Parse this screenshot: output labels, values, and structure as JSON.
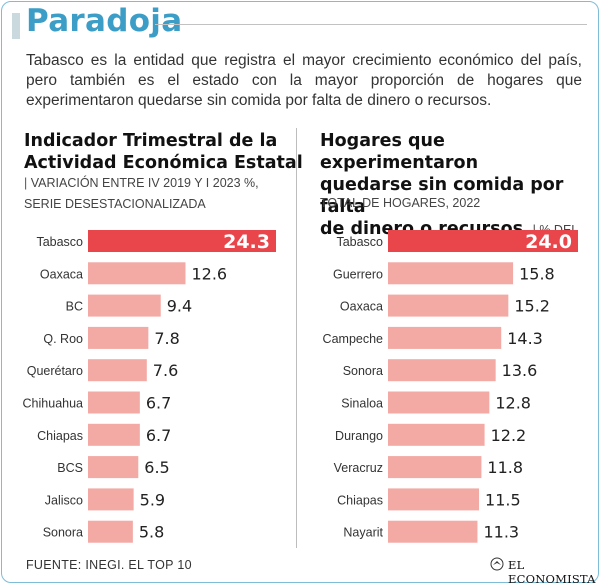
{
  "header": {
    "title": "Paradoja",
    "intro": "Tabasco es la entidad que registra el mayor crecimiento económico del país, pero también es el estado con la mayor proporción de hogares que experimentaron quedarse sin comida por falta de dinero o recursos."
  },
  "left_panel": {
    "heading_line1": "Indicador Trimestral de la",
    "heading_line2": "Actividad Económica Estatal",
    "subtitle_line1": "Variación entre IV 2019 y I 2023 %,",
    "subtitle_line2": "serie desestacionalizada"
  },
  "right_panel": {
    "heading_line1": "Hogares que experimentaron",
    "heading_line2": "quedarse sin comida por falta",
    "heading_line3": "de dinero o recursos",
    "subtitle_inline": "% del",
    "subtitle_line2": "total de hogares, 2022"
  },
  "colors": {
    "highlight_bar": "#e8464b",
    "bar": "#f3a9a4",
    "title": "#3c9dc6"
  },
  "chart_data": [
    {
      "type": "bar",
      "orientation": "horizontal",
      "title": "Indicador Trimestral de la Actividad Económica Estatal",
      "subtitle": "Variación entre IV 2019 y I 2023 %, serie desestacionalizada",
      "categories": [
        "Tabasco",
        "Oaxaca",
        "BC",
        "Q. Roo",
        "Querétaro",
        "Chihuahua",
        "Chiapas",
        "BCS",
        "Jalisco",
        "Sonora"
      ],
      "values": [
        24.3,
        12.6,
        9.4,
        7.8,
        7.6,
        6.7,
        6.7,
        6.5,
        5.9,
        5.8
      ],
      "labels": [
        "24.3",
        "12.6",
        "9.4",
        "7.8",
        "7.6",
        "6.7",
        "6.7",
        "6.5",
        "5.9",
        "5.8"
      ],
      "highlight_index": 0,
      "xlim": [
        0,
        24.3
      ]
    },
    {
      "type": "bar",
      "orientation": "horizontal",
      "title": "Hogares que experimentaron quedarse sin comida por falta de dinero o recursos",
      "subtitle": "% del total de hogares, 2022",
      "categories": [
        "Tabasco",
        "Guerrero",
        "Oaxaca",
        "Campeche",
        "Sonora",
        "Sinaloa",
        "Durango",
        "Veracruz",
        "Chiapas",
        "Nayarit"
      ],
      "values": [
        24.0,
        15.8,
        15.2,
        14.3,
        13.6,
        12.8,
        12.2,
        11.8,
        11.5,
        11.3
      ],
      "labels": [
        "24.0",
        "15.8",
        "15.2",
        "14.3",
        "13.6",
        "12.8",
        "12.2",
        "11.8",
        "11.5",
        "11.3"
      ],
      "highlight_index": 0,
      "xlim": [
        0,
        24.0
      ]
    }
  ],
  "footer": {
    "source": "FUENTE: INEGI. EL TOP 10",
    "brand": "EL ECONOMISTA"
  }
}
